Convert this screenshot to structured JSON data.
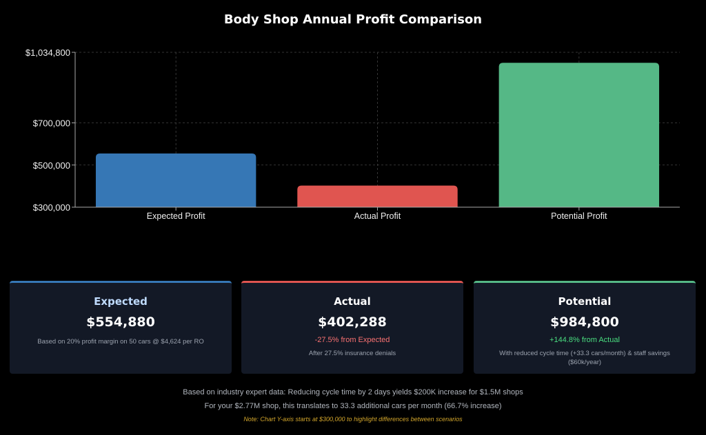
{
  "chart_data": {
    "type": "bar",
    "title": "Body Shop Annual Profit Comparison",
    "categories": [
      "Expected Profit",
      "Actual Profit",
      "Potential Profit"
    ],
    "values": [
      554880,
      402288,
      984800
    ],
    "colors": [
      "#3677b5",
      "#e05550",
      "#55b886"
    ],
    "ylim": [
      300000,
      1034800
    ],
    "yticks": [
      300000,
      500000,
      700000,
      1034800
    ],
    "ytick_labels": [
      "$300,000",
      "$500,000",
      "$700,000",
      "$1,034,800"
    ],
    "grid": true,
    "xlabel": "",
    "ylabel": ""
  },
  "cards": [
    {
      "title": "Expected",
      "value": "$554,880",
      "change": "",
      "desc": "Based on 20% profit margin on 50 cars @ $4,624 per RO",
      "accent": "#3677b5",
      "title_color": "#bfdbfe",
      "change_color": ""
    },
    {
      "title": "Actual",
      "value": "$402,288",
      "change": "-27.5% from Expected",
      "desc": "After 27.5% insurance denials",
      "accent": "#e05550",
      "title_color": "#ffffff",
      "change_color": "#f87171"
    },
    {
      "title": "Potential",
      "value": "$984,800",
      "change": "+144.8% from Actual",
      "desc": "With reduced cycle time (+33.3 cars/month) & staff savings ($60k/year)",
      "accent": "#55b886",
      "title_color": "#ffffff",
      "change_color": "#4ade80"
    }
  ],
  "footer": {
    "line1": "Based on industry expert data: Reducing cycle time by 2 days yields $200K increase for $1.5M shops",
    "line2": "For your $2.77M shop, this translates to 33.3 additional cars per month (66.7% increase)",
    "note": "Note: Chart Y-axis starts at $300,000 to highlight differences between scenarios"
  }
}
